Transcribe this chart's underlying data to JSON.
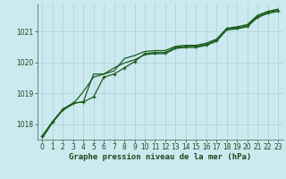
{
  "title": "Graphe pression niveau de la mer (hPa)",
  "bg_color": "#cce9f0",
  "grid_color": "#b0d8e2",
  "line_color": "#1a5c1a",
  "xlim": [
    -0.5,
    23.5
  ],
  "ylim": [
    1017.5,
    1021.9
  ],
  "yticks": [
    1018,
    1019,
    1020,
    1021
  ],
  "xticks": [
    0,
    1,
    2,
    3,
    4,
    5,
    6,
    7,
    8,
    9,
    10,
    11,
    12,
    13,
    14,
    15,
    16,
    17,
    18,
    19,
    20,
    21,
    22,
    23
  ],
  "series_main": [
    1017.62,
    1018.08,
    1018.48,
    1018.68,
    1018.72,
    1018.88,
    1019.52,
    1019.62,
    1019.82,
    1020.02,
    1020.28,
    1020.32,
    1020.32,
    1020.48,
    1020.52,
    1020.52,
    1020.58,
    1020.72,
    1021.08,
    1021.12,
    1021.18,
    1021.48,
    1021.62,
    1021.68
  ],
  "series_high": [
    1017.62,
    1018.08,
    1018.48,
    1018.68,
    1018.72,
    1019.62,
    1019.62,
    1019.72,
    1020.12,
    1020.22,
    1020.35,
    1020.38,
    1020.38,
    1020.52,
    1020.55,
    1020.55,
    1020.62,
    1020.75,
    1021.1,
    1021.15,
    1021.22,
    1021.52,
    1021.65,
    1021.72
  ],
  "series_low": [
    1017.55,
    1018.05,
    1018.45,
    1018.65,
    1019.05,
    1019.52,
    1019.62,
    1019.82,
    1019.98,
    1020.08,
    1020.25,
    1020.28,
    1020.28,
    1020.45,
    1020.48,
    1020.48,
    1020.55,
    1020.68,
    1021.05,
    1021.08,
    1021.15,
    1021.45,
    1021.58,
    1021.65
  ],
  "tick_fontsize": 5.5,
  "label_fontsize": 6.5
}
